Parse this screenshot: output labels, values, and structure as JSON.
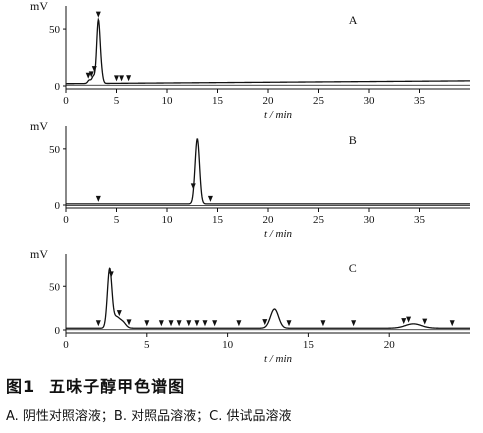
{
  "caption": {
    "figure_label": "图1",
    "title": "五味子醇甲色谱图",
    "legend_text": "A. 阴性对照溶液；B. 对照品溶液；C. 供试品溶液"
  },
  "chart_data": [
    {
      "type": "line",
      "panel_label": "A",
      "ylabel": "mV",
      "xlabel": "t / min",
      "xlim": [
        0,
        40
      ],
      "ylim": [
        0,
        65
      ],
      "xticks": [
        0,
        5,
        10,
        15,
        20,
        25,
        30,
        35
      ],
      "yticks": [
        0,
        50
      ],
      "baseline": 2,
      "peaks": [
        {
          "rt": 2.3,
          "height": 3,
          "width": 0.15
        },
        {
          "rt": 2.7,
          "height": 6,
          "width": 0.15
        },
        {
          "rt": 3.2,
          "height": 55,
          "width": 0.17
        },
        {
          "rt": 3.5,
          "height": 8,
          "width": 0.15
        }
      ],
      "markers": [
        2.2,
        2.5,
        2.8,
        3.2,
        5.0,
        5.5,
        6.2
      ]
    },
    {
      "type": "line",
      "panel_label": "B",
      "ylabel": "mV",
      "xlabel": "t / min",
      "xlim": [
        0,
        40
      ],
      "ylim": [
        0,
        65
      ],
      "xticks": [
        0,
        5,
        10,
        15,
        20,
        25,
        30,
        35
      ],
      "yticks": [
        0,
        50
      ],
      "baseline": 1,
      "peaks": [
        {
          "rt": 13.0,
          "height": 58,
          "width": 0.22
        }
      ],
      "markers": [
        3.2,
        12.6,
        14.3
      ]
    },
    {
      "type": "line",
      "panel_label": "C",
      "ylabel": "mV",
      "xlabel": "t / min",
      "xlim": [
        0,
        25
      ],
      "ylim": [
        0,
        80
      ],
      "xticks": [
        0,
        5,
        10,
        15,
        20
      ],
      "yticks": [
        0,
        50
      ],
      "baseline": 2,
      "peaks": [
        {
          "rt": 2.7,
          "height": 67,
          "width": 0.14
        },
        {
          "rt": 3.1,
          "height": 12,
          "width": 0.2
        },
        {
          "rt": 3.5,
          "height": 7,
          "width": 0.2
        },
        {
          "rt": 12.9,
          "height": 22,
          "width": 0.25
        },
        {
          "rt": 21.5,
          "height": 5,
          "width": 0.5
        }
      ],
      "markers": [
        2.0,
        2.8,
        3.3,
        3.9,
        5.0,
        5.9,
        6.5,
        7.0,
        7.6,
        8.1,
        8.6,
        9.2,
        10.7,
        12.3,
        13.8,
        15.9,
        17.8,
        20.9,
        21.2,
        22.2,
        23.9
      ]
    }
  ]
}
